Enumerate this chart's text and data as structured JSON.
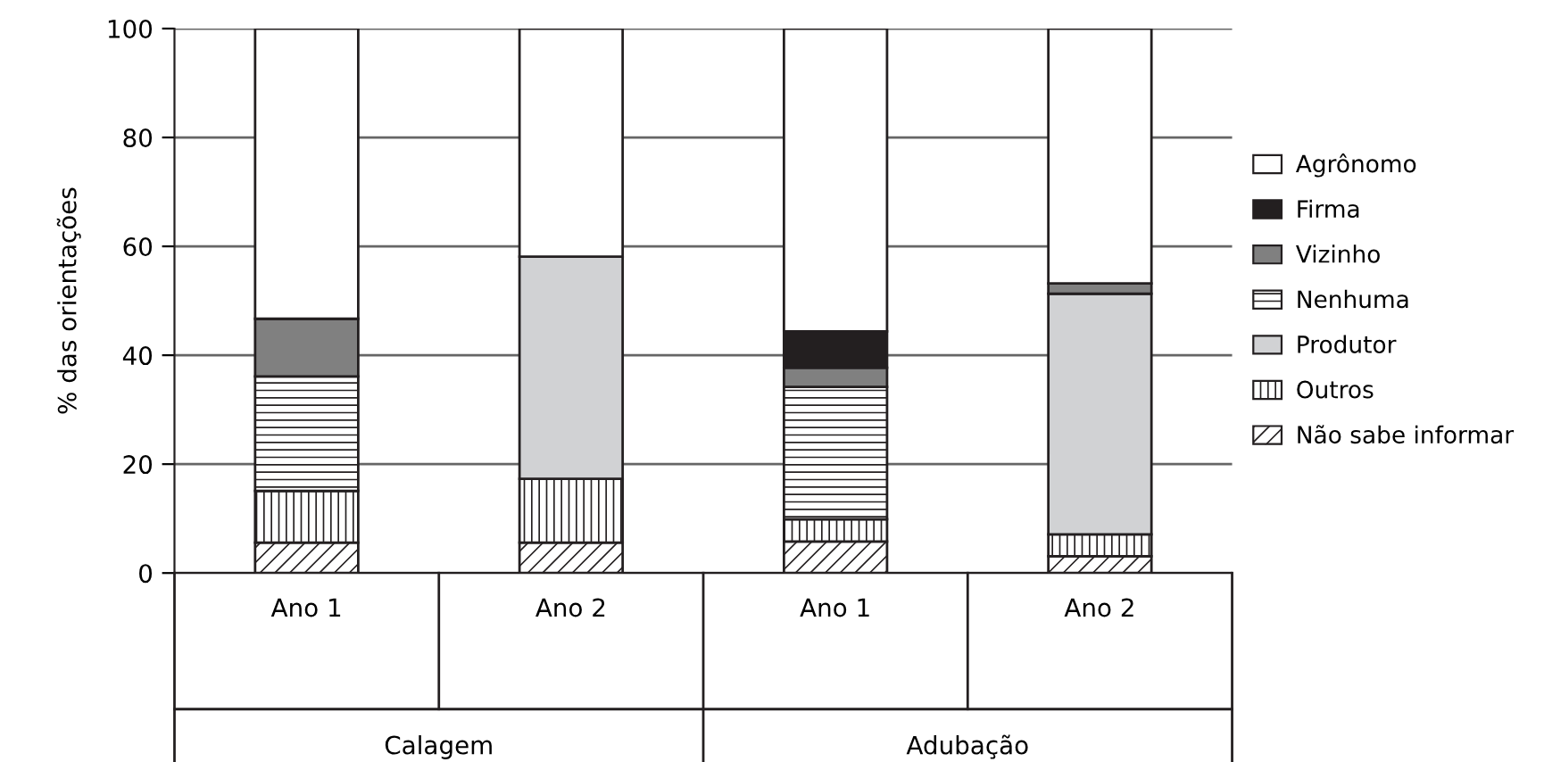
{
  "chart_data": {
    "type": "bar",
    "stacked": true,
    "ylabel": "% das orientações",
    "categories": [
      "Ano 1",
      "Ano 2",
      "Ano 1",
      "Ano 2"
    ],
    "annotations": [
      "Calagem",
      "Adubação"
    ],
    "ylim": [
      0,
      100
    ],
    "yticks": [
      0,
      20,
      40,
      60,
      80,
      100
    ],
    "grid": "y",
    "legend": "right",
    "series": [
      {
        "name": "Não sabe informar",
        "color": "#ffffff",
        "values": [
          5.6,
          5.6,
          5.8,
          3.1
        ]
      },
      {
        "name": "Outros",
        "color": "#ffffff",
        "values": [
          9.5,
          11.7,
          4.1,
          4.0
        ]
      },
      {
        "name": "Produtor",
        "color": "#d1d2d4",
        "values": [
          0,
          40.8,
          0,
          44.2
        ]
      },
      {
        "name": "Nenhuma",
        "color": "#ffffff",
        "values": [
          21.0,
          0,
          24.3,
          0
        ]
      },
      {
        "name": "Vizinho",
        "color": "#808080",
        "values": [
          10.6,
          0,
          3.5,
          1.9
        ]
      },
      {
        "name": "Firma",
        "color": "#231f20",
        "values": [
          0,
          0,
          6.7,
          0
        ]
      },
      {
        "name": "Agrônomo",
        "color": "#ffffff",
        "values": [
          53.3,
          41.9,
          55.6,
          46.8
        ]
      }
    ]
  }
}
